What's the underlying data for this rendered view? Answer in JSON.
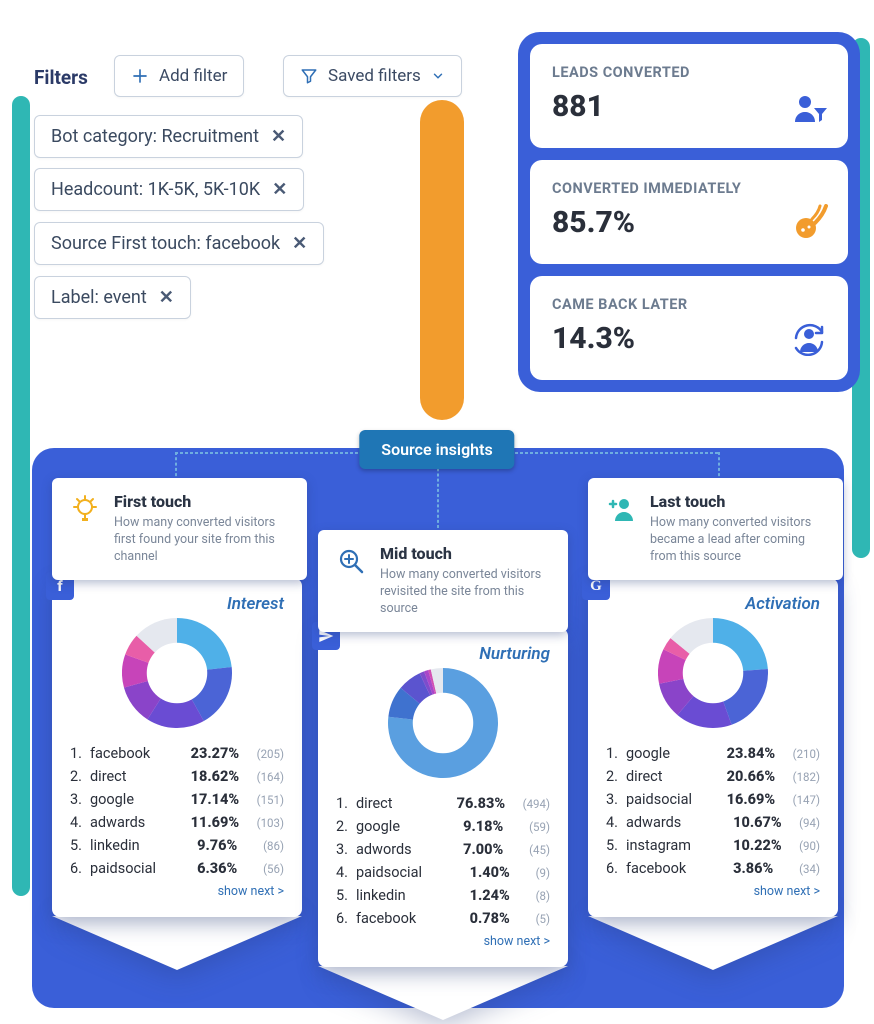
{
  "colors": {
    "accent_blue": "#3a5fd8",
    "teal": "#2fb7b4",
    "orange": "#f29c2d",
    "link_blue": "#2f6fb5",
    "badge_blue": "#1f76b5",
    "text_dark": "#2a2f3a",
    "text_muted": "#6c7b8f",
    "border": "#c9d2de"
  },
  "filters": {
    "label": "Filters",
    "add_button": "Add filter",
    "saved_button": "Saved filters",
    "chips": [
      "Bot category: Recruitment",
      "Headcount: 1K-5K, 5K-10K",
      "Source First touch: facebook",
      "Label: event"
    ]
  },
  "stats": [
    {
      "label": "LEADS CONVERTED",
      "value": "881",
      "icon": "person-funnel",
      "icon_color": "#3a5fd8"
    },
    {
      "label": "CONVERTED IMMEDIATELY",
      "value": "85.7%",
      "icon": "meteor",
      "icon_color": "#f29c2d"
    },
    {
      "label": "CAME BACK LATER",
      "value": "14.3%",
      "icon": "return-visitor",
      "icon_color": "#3a5fd8"
    }
  ],
  "source_insights": {
    "badge": "Source insights",
    "touches": {
      "first": {
        "title": "First touch",
        "desc": "How many converted visitors first found your site from this channel",
        "icon": "lightbulb",
        "icon_color": "#f2b01e",
        "stage": "Interest",
        "badge_bg": "#3a5fd8",
        "badge_icon": "f",
        "show_next": "show next >",
        "donut": {
          "size": 110,
          "hole": 0.55,
          "slices": [
            {
              "color": "#4fb0e8",
              "pct": 23.27
            },
            {
              "color": "#4b64d6",
              "pct": 18.62
            },
            {
              "color": "#6a4cd3",
              "pct": 17.14
            },
            {
              "color": "#8a44c9",
              "pct": 11.69
            },
            {
              "color": "#c744b9",
              "pct": 9.76
            },
            {
              "color": "#e85ea8",
              "pct": 6.36
            },
            {
              "color": "#e5e8ef",
              "pct": 13.16
            }
          ]
        },
        "rows": [
          {
            "n": "1.",
            "name": "facebook",
            "pct": "23.27%",
            "cnt": "(205)"
          },
          {
            "n": "2.",
            "name": "direct",
            "pct": "18.62%",
            "cnt": "(164)"
          },
          {
            "n": "3.",
            "name": "google",
            "pct": "17.14%",
            "cnt": "(151)"
          },
          {
            "n": "4.",
            "name": "adwards",
            "pct": "11.69%",
            "cnt": "(103)"
          },
          {
            "n": "5.",
            "name": "linkedin",
            "pct": "9.76%",
            "cnt": "(86)"
          },
          {
            "n": "6.",
            "name": "paidsocial",
            "pct": "6.36%",
            "cnt": "(56)"
          }
        ]
      },
      "mid": {
        "title": "Mid touch",
        "desc": "How many converted visitors revisited the site from this source",
        "icon": "magnify",
        "icon_color": "#2f6fb5",
        "stage": "Nurturing",
        "badge_bg": "#3a5fd8",
        "badge_icon": "send",
        "show_next": "show next >",
        "donut": {
          "size": 110,
          "hole": 0.55,
          "slices": [
            {
              "color": "#5a9fe0",
              "pct": 76.83
            },
            {
              "color": "#3f72cf",
              "pct": 9.18
            },
            {
              "color": "#5b54cf",
              "pct": 7.0
            },
            {
              "color": "#7d4ccc",
              "pct": 1.4
            },
            {
              "color": "#a946c9",
              "pct": 1.24
            },
            {
              "color": "#d14fb3",
              "pct": 0.78
            },
            {
              "color": "#e5e8ef",
              "pct": 3.57
            }
          ]
        },
        "rows": [
          {
            "n": "1.",
            "name": "direct",
            "pct": "76.83%",
            "cnt": "(494)"
          },
          {
            "n": "2.",
            "name": "google",
            "pct": "9.18%",
            "cnt": "(59)"
          },
          {
            "n": "3.",
            "name": "adwords",
            "pct": "7.00%",
            "cnt": "(45)"
          },
          {
            "n": "4.",
            "name": "paidsocial",
            "pct": "1.40%",
            "cnt": "(9)"
          },
          {
            "n": "5.",
            "name": "linkedin",
            "pct": "1.24%",
            "cnt": "(8)"
          },
          {
            "n": "6.",
            "name": "facebook",
            "pct": "0.78%",
            "cnt": "(5)"
          }
        ]
      },
      "last": {
        "title": "Last touch",
        "desc": "How many converted visitors became a lead after coming from this source",
        "icon": "add-user",
        "icon_color": "#2fb7b4",
        "stage": "Activation",
        "badge_bg": "#3a5fd8",
        "badge_icon": "G",
        "show_next": "show next >",
        "donut": {
          "size": 110,
          "hole": 0.55,
          "slices": [
            {
              "color": "#4fb0e8",
              "pct": 23.84
            },
            {
              "color": "#4b64d6",
              "pct": 20.66
            },
            {
              "color": "#6a4cd3",
              "pct": 16.69
            },
            {
              "color": "#8a44c9",
              "pct": 10.67
            },
            {
              "color": "#c744b9",
              "pct": 10.22
            },
            {
              "color": "#e85ea8",
              "pct": 3.86
            },
            {
              "color": "#e5e8ef",
              "pct": 14.06
            }
          ]
        },
        "rows": [
          {
            "n": "1.",
            "name": "google",
            "pct": "23.84%",
            "cnt": "(210)"
          },
          {
            "n": "2.",
            "name": "direct",
            "pct": "20.66%",
            "cnt": "(182)"
          },
          {
            "n": "3.",
            "name": "paidsocial",
            "pct": "16.69%",
            "cnt": "(147)"
          },
          {
            "n": "4.",
            "name": "adwards",
            "pct": "10.67%",
            "cnt": "(94)"
          },
          {
            "n": "5.",
            "name": "instagram",
            "pct": "10.22%",
            "cnt": "(90)"
          },
          {
            "n": "6.",
            "name": "facebook",
            "pct": "3.86%",
            "cnt": "(34)"
          }
        ]
      }
    }
  }
}
